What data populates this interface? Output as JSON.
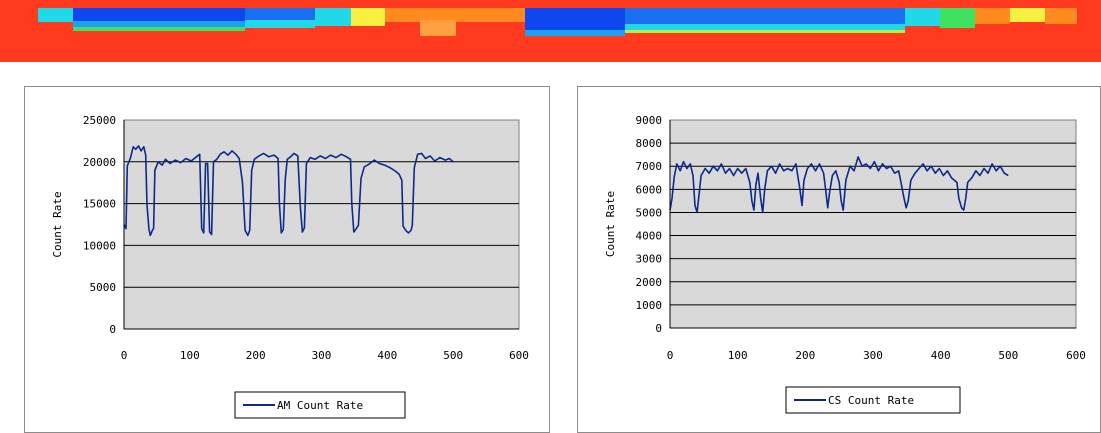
{
  "heatmap_strip": {
    "colors": {
      "base": "#ff3a1e",
      "deep_blue": "#1046ee",
      "blue": "#1870f0",
      "cyan_blue": "#1ea0f0",
      "cyan": "#20d8e8",
      "green": "#40e060",
      "lime": "#b8f040",
      "yellow": "#f8f040",
      "orange": "#ff8a20",
      "light_orange": "#ffa040"
    }
  },
  "colors": {
    "plot_background": "#d9d9d9",
    "gridline": "#000000",
    "series_line": "#0c2a8a",
    "frame_border": "#8c8c8c"
  },
  "chart_data": [
    {
      "type": "line",
      "title": "",
      "xlabel": "",
      "ylabel": "Count Rate",
      "xlim": [
        0,
        600
      ],
      "ylim": [
        0,
        25000
      ],
      "x_ticks": [
        "0",
        "100",
        "200",
        "300",
        "400",
        "500",
        "600"
      ],
      "y_ticks": [
        "0",
        "5000",
        "10000",
        "15000",
        "20000",
        "25000"
      ],
      "legend_position": "bottom",
      "grid": "horizontal",
      "series": [
        {
          "name": "AM Count Rate",
          "points": [
            [
              0,
              12500
            ],
            [
              3,
              12000
            ],
            [
              5,
              19500
            ],
            [
              10,
              20500
            ],
            [
              14,
              21800
            ],
            [
              18,
              21500
            ],
            [
              22,
              21900
            ],
            [
              26,
              21300
            ],
            [
              30,
              21800
            ],
            [
              33,
              20800
            ],
            [
              35,
              14800
            ],
            [
              38,
              11900
            ],
            [
              40,
              11200
            ],
            [
              43,
              11800
            ],
            [
              45,
              12000
            ],
            [
              47,
              19000
            ],
            [
              52,
              20000
            ],
            [
              58,
              19600
            ],
            [
              63,
              20300
            ],
            [
              70,
              19800
            ],
            [
              78,
              20200
            ],
            [
              86,
              19900
            ],
            [
              94,
              20400
            ],
            [
              102,
              20100
            ],
            [
              110,
              20600
            ],
            [
              115,
              20900
            ],
            [
              118,
              12000
            ],
            [
              121,
              11500
            ],
            [
              124,
              19800
            ],
            [
              127,
              19800
            ],
            [
              130,
              11600
            ],
            [
              133,
              11300
            ],
            [
              136,
              20000
            ],
            [
              141,
              20300
            ],
            [
              146,
              20900
            ],
            [
              152,
              21200
            ],
            [
              158,
              20800
            ],
            [
              164,
              21300
            ],
            [
              170,
              20900
            ],
            [
              175,
              20400
            ],
            [
              180,
              17500
            ],
            [
              184,
              11800
            ],
            [
              188,
              11200
            ],
            [
              191,
              11800
            ],
            [
              194,
              19000
            ],
            [
              198,
              20300
            ],
            [
              205,
              20700
            ],
            [
              212,
              21000
            ],
            [
              220,
              20600
            ],
            [
              228,
              20800
            ],
            [
              234,
              20400
            ],
            [
              236,
              15000
            ],
            [
              239,
              11500
            ],
            [
              242,
              11900
            ],
            [
              245,
              18000
            ],
            [
              248,
              20300
            ],
            [
              253,
              20600
            ],
            [
              258,
              21000
            ],
            [
              264,
              20700
            ],
            [
              268,
              14500
            ],
            [
              271,
              11600
            ],
            [
              274,
              12100
            ],
            [
              277,
              19800
            ],
            [
              283,
              20500
            ],
            [
              290,
              20300
            ],
            [
              298,
              20700
            ],
            [
              306,
              20400
            ],
            [
              314,
              20800
            ],
            [
              322,
              20500
            ],
            [
              330,
              20900
            ],
            [
              338,
              20600
            ],
            [
              344,
              20300
            ],
            [
              346,
              15000
            ],
            [
              349,
              11600
            ],
            [
              352,
              11900
            ],
            [
              356,
              12400
            ],
            [
              360,
              18000
            ],
            [
              365,
              19400
            ],
            [
              372,
              19700
            ],
            [
              380,
              20200
            ],
            [
              388,
              19800
            ],
            [
              396,
              19600
            ],
            [
              404,
              19300
            ],
            [
              412,
              18900
            ],
            [
              418,
              18500
            ],
            [
              422,
              17800
            ],
            [
              424,
              12300
            ],
            [
              428,
              11800
            ],
            [
              432,
              11500
            ],
            [
              436,
              11800
            ],
            [
              438,
              12400
            ],
            [
              441,
              19300
            ],
            [
              446,
              20900
            ],
            [
              452,
              21000
            ],
            [
              458,
              20400
            ],
            [
              465,
              20700
            ],
            [
              472,
              20100
            ],
            [
              480,
              20500
            ],
            [
              488,
              20200
            ],
            [
              494,
              20400
            ],
            [
              500,
              20000
            ]
          ]
        }
      ]
    },
    {
      "type": "line",
      "title": "",
      "xlabel": "",
      "ylabel": "Count Rate",
      "xlim": [
        0,
        600
      ],
      "ylim": [
        0,
        9000
      ],
      "x_ticks": [
        "0",
        "100",
        "200",
        "300",
        "400",
        "500",
        "600"
      ],
      "y_ticks": [
        "0",
        "1000",
        "2000",
        "3000",
        "4000",
        "5000",
        "6000",
        "7000",
        "8000",
        "9000"
      ],
      "legend_position": "bottom",
      "grid": "horizontal",
      "series": [
        {
          "name": "CS Count Rate",
          "points": [
            [
              0,
              5100
            ],
            [
              3,
              5600
            ],
            [
              6,
              6500
            ],
            [
              10,
              7100
            ],
            [
              15,
              6800
            ],
            [
              20,
              7200
            ],
            [
              25,
              6900
            ],
            [
              30,
              7100
            ],
            [
              34,
              6600
            ],
            [
              37,
              5300
            ],
            [
              40,
              5000
            ],
            [
              43,
              5800
            ],
            [
              46,
              6600
            ],
            [
              52,
              6900
            ],
            [
              58,
              6700
            ],
            [
              64,
              7000
            ],
            [
              70,
              6800
            ],
            [
              76,
              7100
            ],
            [
              82,
              6700
            ],
            [
              88,
              6900
            ],
            [
              94,
              6600
            ],
            [
              100,
              6900
            ],
            [
              106,
              6700
            ],
            [
              112,
              6900
            ],
            [
              118,
              6300
            ],
            [
              121,
              5500
            ],
            [
              124,
              5100
            ],
            [
              127,
              6200
            ],
            [
              130,
              6700
            ],
            [
              134,
              5600
            ],
            [
              137,
              5000
            ],
            [
              140,
              6000
            ],
            [
              144,
              6800
            ],
            [
              150,
              7000
            ],
            [
              156,
              6700
            ],
            [
              162,
              7100
            ],
            [
              168,
              6800
            ],
            [
              174,
              6900
            ],
            [
              180,
              6800
            ],
            [
              186,
              7100
            ],
            [
              192,
              6000
            ],
            [
              195,
              5300
            ],
            [
              198,
              6400
            ],
            [
              203,
              6900
            ],
            [
              209,
              7100
            ],
            [
              215,
              6800
            ],
            [
              221,
              7100
            ],
            [
              227,
              6700
            ],
            [
              230,
              6000
            ],
            [
              233,
              5200
            ],
            [
              236,
              5900
            ],
            [
              240,
              6600
            ],
            [
              245,
              6800
            ],
            [
              250,
              6300
            ],
            [
              253,
              5500
            ],
            [
              256,
              5100
            ],
            [
              260,
              6400
            ],
            [
              266,
              7000
            ],
            [
              272,
              6800
            ],
            [
              278,
              7400
            ],
            [
              284,
              7000
            ],
            [
              290,
              7100
            ],
            [
              296,
              6900
            ],
            [
              302,
              7200
            ],
            [
              308,
              6800
            ],
            [
              314,
              7100
            ],
            [
              320,
              6900
            ],
            [
              326,
              7000
            ],
            [
              332,
              6700
            ],
            [
              338,
              6800
            ],
            [
              342,
              6200
            ],
            [
              346,
              5600
            ],
            [
              349,
              5200
            ],
            [
              352,
              5500
            ],
            [
              356,
              6400
            ],
            [
              362,
              6700
            ],
            [
              368,
              6900
            ],
            [
              374,
              7100
            ],
            [
              380,
              6800
            ],
            [
              386,
              7000
            ],
            [
              392,
              6700
            ],
            [
              398,
              6900
            ],
            [
              404,
              6600
            ],
            [
              410,
              6800
            ],
            [
              416,
              6500
            ],
            [
              420,
              6400
            ],
            [
              424,
              6300
            ],
            [
              427,
              5600
            ],
            [
              431,
              5200
            ],
            [
              434,
              5100
            ],
            [
              437,
              5600
            ],
            [
              440,
              6300
            ],
            [
              446,
              6500
            ],
            [
              452,
              6800
            ],
            [
              458,
              6600
            ],
            [
              464,
              6900
            ],
            [
              470,
              6700
            ],
            [
              476,
              7100
            ],
            [
              482,
              6800
            ],
            [
              488,
              7000
            ],
            [
              494,
              6700
            ],
            [
              500,
              6600
            ]
          ]
        }
      ]
    }
  ]
}
